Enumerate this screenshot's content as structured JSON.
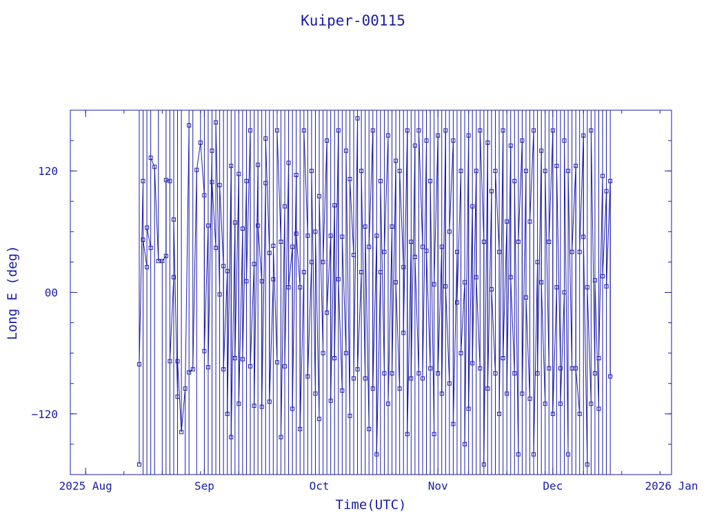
{
  "chart_data": {
    "type": "scatter",
    "title": "Kuiper-00115",
    "xlabel": "Time(UTC)",
    "ylabel": "Long E (deg)",
    "xlim": [
      "2025-07-28",
      "2026-01-01"
    ],
    "ylim": [
      -180,
      180
    ],
    "x_ticks": [
      {
        "date": "2025-08-01",
        "label": "2025 Aug"
      },
      {
        "date": "2025-09-01",
        "label": "Sep"
      },
      {
        "date": "2025-10-01",
        "label": "Oct"
      },
      {
        "date": "2025-11-01",
        "label": "Nov"
      },
      {
        "date": "2025-12-01",
        "label": "Dec"
      },
      {
        "date": "2026-01-01",
        "label": "2026 Jan"
      }
    ],
    "y_ticks": [
      {
        "value": 120,
        "label": "120"
      },
      {
        "value": 0,
        "label": "00"
      },
      {
        "value": -120,
        "label": "−120"
      }
    ],
    "grid": false,
    "legend": "none",
    "marker": "square",
    "line_connected": true,
    "color": "#1a1aa8",
    "data_start": "2025-08-15",
    "data_end": "2025-12-16",
    "series": [
      {
        "points": [
          {
            "x": "2025-08-15",
            "y": -170
          },
          {
            "x": "2025-08-15",
            "y": -71
          },
          {
            "x": "2025-08-16",
            "y": 110
          },
          {
            "x": "2025-08-16",
            "y": 52
          },
          {
            "x": "2025-08-17",
            "y": 25
          },
          {
            "x": "2025-08-17",
            "y": 64
          },
          {
            "x": "2025-08-18",
            "y": 44
          },
          {
            "x": "2025-08-18",
            "y": 133
          },
          {
            "x": "2025-08-19",
            "y": 124
          },
          {
            "x": "2025-08-20",
            "y": 31
          },
          {
            "x": "2025-08-21",
            "y": 31
          },
          {
            "x": "2025-08-22",
            "y": 36
          },
          {
            "x": "2025-08-22",
            "y": 111
          },
          {
            "x": "2025-08-23",
            "y": 110
          },
          {
            "x": "2025-08-23",
            "y": -68
          },
          {
            "x": "2025-08-24",
            "y": 15
          },
          {
            "x": "2025-08-24",
            "y": 72
          },
          {
            "x": "2025-08-25",
            "y": -103
          },
          {
            "x": "2025-08-25",
            "y": -68
          },
          {
            "x": "2025-08-26",
            "y": -138
          },
          {
            "x": "2025-08-27",
            "y": -95
          },
          {
            "x": "2025-08-28",
            "y": 165
          },
          {
            "x": "2025-08-28",
            "y": -79
          },
          {
            "x": "2025-08-29",
            "y": -76
          },
          {
            "x": "2025-08-30",
            "y": 121
          },
          {
            "x": "2025-08-31",
            "y": 148
          },
          {
            "x": "2025-09-01",
            "y": 96
          },
          {
            "x": "2025-09-01",
            "y": -58
          },
          {
            "x": "2025-09-02",
            "y": 66
          },
          {
            "x": "2025-09-02",
            "y": -74
          },
          {
            "x": "2025-09-03",
            "y": 140
          },
          {
            "x": "2025-09-03",
            "y": 109
          },
          {
            "x": "2025-09-04",
            "y": 44
          },
          {
            "x": "2025-09-04",
            "y": 168
          },
          {
            "x": "2025-09-05",
            "y": -2
          },
          {
            "x": "2025-09-05",
            "y": 106
          },
          {
            "x": "2025-09-06",
            "y": 26
          },
          {
            "x": "2025-09-06",
            "y": -76
          },
          {
            "x": "2025-09-07",
            "y": 21
          },
          {
            "x": "2025-09-07",
            "y": -120
          },
          {
            "x": "2025-09-08",
            "y": 125
          },
          {
            "x": "2025-09-08",
            "y": -143
          },
          {
            "x": "2025-09-09",
            "y": 69
          },
          {
            "x": "2025-09-09",
            "y": -65
          },
          {
            "x": "2025-09-10",
            "y": 117
          },
          {
            "x": "2025-09-10",
            "y": -110
          },
          {
            "x": "2025-09-11",
            "y": 63
          },
          {
            "x": "2025-09-11",
            "y": -66
          },
          {
            "x": "2025-09-12",
            "y": 110
          },
          {
            "x": "2025-09-12",
            "y": 11
          },
          {
            "x": "2025-09-13",
            "y": 160
          },
          {
            "x": "2025-09-13",
            "y": -73
          },
          {
            "x": "2025-09-14",
            "y": 28
          },
          {
            "x": "2025-09-14",
            "y": -112
          },
          {
            "x": "2025-09-15",
            "y": 126
          },
          {
            "x": "2025-09-15",
            "y": 66
          },
          {
            "x": "2025-09-16",
            "y": 11
          },
          {
            "x": "2025-09-16",
            "y": -113
          },
          {
            "x": "2025-09-17",
            "y": 108
          },
          {
            "x": "2025-09-17",
            "y": 152
          },
          {
            "x": "2025-09-18",
            "y": 39
          },
          {
            "x": "2025-09-18",
            "y": -108
          },
          {
            "x": "2025-09-19",
            "y": 13
          },
          {
            "x": "2025-09-19",
            "y": 46
          },
          {
            "x": "2025-09-20",
            "y": -69
          },
          {
            "x": "2025-09-20",
            "y": 160
          },
          {
            "x": "2025-09-21",
            "y": 50
          },
          {
            "x": "2025-09-21",
            "y": -143
          },
          {
            "x": "2025-09-22",
            "y": 85
          },
          {
            "x": "2025-09-22",
            "y": -73
          },
          {
            "x": "2025-09-23",
            "y": 128
          },
          {
            "x": "2025-09-23",
            "y": 5
          },
          {
            "x": "2025-09-24",
            "y": 45
          },
          {
            "x": "2025-09-24",
            "y": -115
          },
          {
            "x": "2025-09-25",
            "y": 116
          },
          {
            "x": "2025-09-25",
            "y": 58
          },
          {
            "x": "2025-09-26",
            "y": 5
          },
          {
            "x": "2025-09-26",
            "y": -135
          },
          {
            "x": "2025-09-27",
            "y": 20
          },
          {
            "x": "2025-09-27",
            "y": 160
          },
          {
            "x": "2025-09-28",
            "y": 56
          },
          {
            "x": "2025-09-28",
            "y": -83
          },
          {
            "x": "2025-09-29",
            "y": 30
          },
          {
            "x": "2025-09-29",
            "y": 120
          },
          {
            "x": "2025-09-30",
            "y": -100
          },
          {
            "x": "2025-09-30",
            "y": 60
          },
          {
            "x": "2025-10-01",
            "y": -125
          },
          {
            "x": "2025-10-01",
            "y": 95
          },
          {
            "x": "2025-10-02",
            "y": -60
          },
          {
            "x": "2025-10-02",
            "y": 30
          },
          {
            "x": "2025-10-03",
            "y": 150
          },
          {
            "x": "2025-10-03",
            "y": -20
          },
          {
            "x": "2025-10-04",
            "y": 56
          },
          {
            "x": "2025-10-04",
            "y": -107
          },
          {
            "x": "2025-10-05",
            "y": 86
          },
          {
            "x": "2025-10-05",
            "y": -65
          },
          {
            "x": "2025-10-06",
            "y": 160
          },
          {
            "x": "2025-10-06",
            "y": 13
          },
          {
            "x": "2025-10-07",
            "y": -97
          },
          {
            "x": "2025-10-07",
            "y": 55
          },
          {
            "x": "2025-10-08",
            "y": -60
          },
          {
            "x": "2025-10-08",
            "y": 140
          },
          {
            "x": "2025-10-09",
            "y": -122
          },
          {
            "x": "2025-10-09",
            "y": 112
          },
          {
            "x": "2025-10-10",
            "y": 37
          },
          {
            "x": "2025-10-10",
            "y": -85
          },
          {
            "x": "2025-10-11",
            "y": 172
          },
          {
            "x": "2025-10-11",
            "y": -76
          },
          {
            "x": "2025-10-12",
            "y": 20
          },
          {
            "x": "2025-10-12",
            "y": 120
          },
          {
            "x": "2025-10-13",
            "y": -85
          },
          {
            "x": "2025-10-13",
            "y": 65
          },
          {
            "x": "2025-10-14",
            "y": -135
          },
          {
            "x": "2025-10-14",
            "y": 45
          },
          {
            "x": "2025-10-15",
            "y": 160
          },
          {
            "x": "2025-10-15",
            "y": -95
          },
          {
            "x": "2025-10-16",
            "y": 56
          },
          {
            "x": "2025-10-16",
            "y": -160
          },
          {
            "x": "2025-10-17",
            "y": 20
          },
          {
            "x": "2025-10-17",
            "y": 110
          },
          {
            "x": "2025-10-18",
            "y": -80
          },
          {
            "x": "2025-10-18",
            "y": 40
          },
          {
            "x": "2025-10-19",
            "y": 155
          },
          {
            "x": "2025-10-19",
            "y": -110
          },
          {
            "x": "2025-10-20",
            "y": 65
          },
          {
            "x": "2025-10-20",
            "y": -80
          },
          {
            "x": "2025-10-21",
            "y": 130
          },
          {
            "x": "2025-10-21",
            "y": 10
          },
          {
            "x": "2025-10-22",
            "y": -95
          },
          {
            "x": "2025-10-22",
            "y": 120
          },
          {
            "x": "2025-10-23",
            "y": 25
          },
          {
            "x": "2025-10-23",
            "y": -40
          },
          {
            "x": "2025-10-24",
            "y": 160
          },
          {
            "x": "2025-10-24",
            "y": -140
          },
          {
            "x": "2025-10-25",
            "y": 50
          },
          {
            "x": "2025-10-25",
            "y": -85
          },
          {
            "x": "2025-10-26",
            "y": 145
          },
          {
            "x": "2025-10-26",
            "y": 35
          },
          {
            "x": "2025-10-27",
            "y": -80
          },
          {
            "x": "2025-10-27",
            "y": 160
          },
          {
            "x": "2025-10-28",
            "y": 45
          },
          {
            "x": "2025-10-28",
            "y": -85
          },
          {
            "x": "2025-10-29",
            "y": 150
          },
          {
            "x": "2025-10-29",
            "y": 41
          },
          {
            "x": "2025-10-30",
            "y": -75
          },
          {
            "x": "2025-10-30",
            "y": 110
          },
          {
            "x": "2025-10-31",
            "y": -140
          },
          {
            "x": "2025-10-31",
            "y": 8
          },
          {
            "x": "2025-11-01",
            "y": 155
          },
          {
            "x": "2025-11-01",
            "y": -80
          },
          {
            "x": "2025-11-02",
            "y": 45
          },
          {
            "x": "2025-11-02",
            "y": -100
          },
          {
            "x": "2025-11-03",
            "y": 160
          },
          {
            "x": "2025-11-03",
            "y": 6
          },
          {
            "x": "2025-11-04",
            "y": -90
          },
          {
            "x": "2025-11-04",
            "y": 60
          },
          {
            "x": "2025-11-05",
            "y": 150
          },
          {
            "x": "2025-11-05",
            "y": -130
          },
          {
            "x": "2025-11-06",
            "y": 40
          },
          {
            "x": "2025-11-06",
            "y": -10
          },
          {
            "x": "2025-11-07",
            "y": 120
          },
          {
            "x": "2025-11-07",
            "y": -60
          },
          {
            "x": "2025-11-08",
            "y": 10
          },
          {
            "x": "2025-11-08",
            "y": -150
          },
          {
            "x": "2025-11-09",
            "y": 155
          },
          {
            "x": "2025-11-09",
            "y": -115
          },
          {
            "x": "2025-11-10",
            "y": 85
          },
          {
            "x": "2025-11-10",
            "y": -70
          },
          {
            "x": "2025-11-11",
            "y": 120
          },
          {
            "x": "2025-11-11",
            "y": 15
          },
          {
            "x": "2025-11-12",
            "y": -75
          },
          {
            "x": "2025-11-12",
            "y": 160
          },
          {
            "x": "2025-11-13",
            "y": 50
          },
          {
            "x": "2025-11-13",
            "y": -170
          },
          {
            "x": "2025-11-14",
            "y": 148
          },
          {
            "x": "2025-11-14",
            "y": -95
          },
          {
            "x": "2025-11-15",
            "y": 100
          },
          {
            "x": "2025-11-15",
            "y": 3
          },
          {
            "x": "2025-11-16",
            "y": -80
          },
          {
            "x": "2025-11-16",
            "y": 120
          },
          {
            "x": "2025-11-17",
            "y": 40
          },
          {
            "x": "2025-11-17",
            "y": -120
          },
          {
            "x": "2025-11-18",
            "y": 160
          },
          {
            "x": "2025-11-18",
            "y": -65
          },
          {
            "x": "2025-11-19",
            "y": 70
          },
          {
            "x": "2025-11-19",
            "y": -100
          },
          {
            "x": "2025-11-20",
            "y": 145
          },
          {
            "x": "2025-11-20",
            "y": 15
          },
          {
            "x": "2025-11-21",
            "y": -80
          },
          {
            "x": "2025-11-21",
            "y": 110
          },
          {
            "x": "2025-11-22",
            "y": -160
          },
          {
            "x": "2025-11-22",
            "y": 50
          },
          {
            "x": "2025-11-23",
            "y": 150
          },
          {
            "x": "2025-11-23",
            "y": -100
          },
          {
            "x": "2025-11-24",
            "y": 120
          },
          {
            "x": "2025-11-24",
            "y": -5
          },
          {
            "x": "2025-11-25",
            "y": -105
          },
          {
            "x": "2025-11-25",
            "y": 70
          },
          {
            "x": "2025-11-26",
            "y": 160
          },
          {
            "x": "2025-11-26",
            "y": -160
          },
          {
            "x": "2025-11-27",
            "y": 30
          },
          {
            "x": "2025-11-27",
            "y": -80
          },
          {
            "x": "2025-11-28",
            "y": 140
          },
          {
            "x": "2025-11-28",
            "y": 10
          },
          {
            "x": "2025-11-29",
            "y": -110
          },
          {
            "x": "2025-11-29",
            "y": 120
          },
          {
            "x": "2025-11-30",
            "y": -75
          },
          {
            "x": "2025-11-30",
            "y": 50
          },
          {
            "x": "2025-12-01",
            "y": 160
          },
          {
            "x": "2025-12-01",
            "y": -120
          },
          {
            "x": "2025-12-02",
            "y": 5
          },
          {
            "x": "2025-12-02",
            "y": 125
          },
          {
            "x": "2025-12-03",
            "y": -75
          },
          {
            "x": "2025-12-03",
            "y": -110
          },
          {
            "x": "2025-12-04",
            "y": 0
          },
          {
            "x": "2025-12-04",
            "y": 150
          },
          {
            "x": "2025-12-05",
            "y": -160
          },
          {
            "x": "2025-12-05",
            "y": 120
          },
          {
            "x": "2025-12-06",
            "y": -75
          },
          {
            "x": "2025-12-06",
            "y": 40
          },
          {
            "x": "2025-12-07",
            "y": 125
          },
          {
            "x": "2025-12-07",
            "y": -75
          },
          {
            "x": "2025-12-08",
            "y": -120
          },
          {
            "x": "2025-12-08",
            "y": 40
          },
          {
            "x": "2025-12-09",
            "y": 155
          },
          {
            "x": "2025-12-09",
            "y": 55
          },
          {
            "x": "2025-12-10",
            "y": -170
          },
          {
            "x": "2025-12-10",
            "y": 5
          },
          {
            "x": "2025-12-11",
            "y": -110
          },
          {
            "x": "2025-12-11",
            "y": 160
          },
          {
            "x": "2025-12-12",
            "y": -80
          },
          {
            "x": "2025-12-12",
            "y": 12
          },
          {
            "x": "2025-12-13",
            "y": -115
          },
          {
            "x": "2025-12-13",
            "y": -65
          },
          {
            "x": "2025-12-14",
            "y": 115
          },
          {
            "x": "2025-12-14",
            "y": 16
          },
          {
            "x": "2025-12-15",
            "y": 100
          },
          {
            "x": "2025-12-15",
            "y": 6
          },
          {
            "x": "2025-12-16",
            "y": 110
          },
          {
            "x": "2025-12-16",
            "y": -83
          }
        ]
      }
    ]
  }
}
